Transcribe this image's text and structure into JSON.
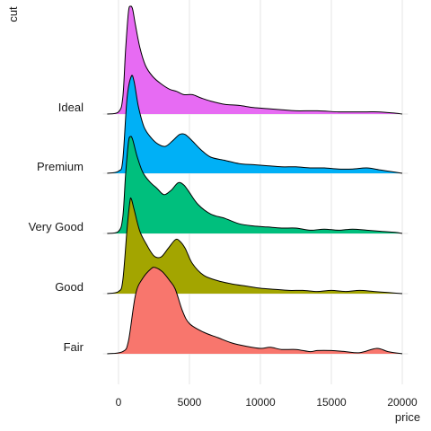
{
  "chart_data": {
    "type": "ridgeline",
    "xlabel": "price",
    "ylabel": "cut",
    "xlim": [
      -1100,
      20400
    ],
    "x_ticks": [
      0,
      5000,
      10000,
      15000,
      20000
    ],
    "grid": "vertical lines at x ticks",
    "categories": [
      "Fair",
      "Good",
      "Very Good",
      "Premium",
      "Ideal"
    ],
    "series": [
      {
        "name": "Fair",
        "color": "#F8766D",
        "density_points": [
          [
            -800,
            0
          ],
          [
            300,
            0.02
          ],
          [
            700,
            0.12
          ],
          [
            1200,
            0.55
          ],
          [
            1700,
            0.7
          ],
          [
            2300,
            0.79
          ],
          [
            2600,
            0.8
          ],
          [
            3100,
            0.76
          ],
          [
            3600,
            0.68
          ],
          [
            4000,
            0.6
          ],
          [
            4500,
            0.4
          ],
          [
            5000,
            0.28
          ],
          [
            6000,
            0.2
          ],
          [
            7000,
            0.15
          ],
          [
            8000,
            0.1
          ],
          [
            9000,
            0.07
          ],
          [
            10000,
            0.05
          ],
          [
            10700,
            0.06
          ],
          [
            11500,
            0.04
          ],
          [
            12500,
            0.04
          ],
          [
            13500,
            0.02
          ],
          [
            14000,
            0.03
          ],
          [
            15000,
            0.03
          ],
          [
            16000,
            0.02
          ],
          [
            17000,
            0.01
          ],
          [
            18200,
            0.05
          ],
          [
            19000,
            0.02
          ],
          [
            20000,
            0
          ]
        ]
      },
      {
        "name": "Good",
        "color": "#A3A500",
        "density_points": [
          [
            -800,
            0
          ],
          [
            0,
            0.02
          ],
          [
            300,
            0.12
          ],
          [
            600,
            0.6
          ],
          [
            800,
            0.85
          ],
          [
            900,
            0.88
          ],
          [
            1100,
            0.78
          ],
          [
            1500,
            0.58
          ],
          [
            2000,
            0.45
          ],
          [
            2500,
            0.35
          ],
          [
            3000,
            0.34
          ],
          [
            3500,
            0.42
          ],
          [
            4000,
            0.5
          ],
          [
            4300,
            0.49
          ],
          [
            4700,
            0.42
          ],
          [
            5200,
            0.28
          ],
          [
            6000,
            0.17
          ],
          [
            7000,
            0.12
          ],
          [
            8000,
            0.09
          ],
          [
            9000,
            0.07
          ],
          [
            10000,
            0.05
          ],
          [
            11000,
            0.04
          ],
          [
            12000,
            0.03
          ],
          [
            13000,
            0.03
          ],
          [
            14000,
            0.02
          ],
          [
            15000,
            0.03
          ],
          [
            16000,
            0.02
          ],
          [
            17000,
            0.03
          ],
          [
            18000,
            0.02
          ],
          [
            19000,
            0.01
          ],
          [
            20000,
            0
          ]
        ]
      },
      {
        "name": "Very Good",
        "color": "#00BF7D",
        "density_points": [
          [
            -800,
            0
          ],
          [
            0,
            0.02
          ],
          [
            300,
            0.15
          ],
          [
            500,
            0.55
          ],
          [
            700,
            0.85
          ],
          [
            850,
            0.9
          ],
          [
            1000,
            0.87
          ],
          [
            1300,
            0.72
          ],
          [
            1700,
            0.57
          ],
          [
            2200,
            0.48
          ],
          [
            2700,
            0.42
          ],
          [
            3200,
            0.36
          ],
          [
            3700,
            0.4
          ],
          [
            4200,
            0.47
          ],
          [
            4600,
            0.45
          ],
          [
            5000,
            0.38
          ],
          [
            5600,
            0.27
          ],
          [
            6500,
            0.18
          ],
          [
            7500,
            0.14
          ],
          [
            8500,
            0.09
          ],
          [
            9500,
            0.07
          ],
          [
            10500,
            0.06
          ],
          [
            11500,
            0.05
          ],
          [
            12500,
            0.05
          ],
          [
            13500,
            0.03
          ],
          [
            14500,
            0.04
          ],
          [
            15500,
            0.03
          ],
          [
            16500,
            0.04
          ],
          [
            17500,
            0.03
          ],
          [
            18500,
            0.02
          ],
          [
            19500,
            0.01
          ],
          [
            20000,
            0
          ]
        ]
      },
      {
        "name": "Premium",
        "color": "#00B0F6",
        "density_points": [
          [
            -800,
            0
          ],
          [
            0,
            0.02
          ],
          [
            300,
            0.12
          ],
          [
            600,
            0.7
          ],
          [
            900,
            0.9
          ],
          [
            1100,
            0.85
          ],
          [
            1400,
            0.62
          ],
          [
            1800,
            0.43
          ],
          [
            2300,
            0.33
          ],
          [
            2800,
            0.27
          ],
          [
            3300,
            0.25
          ],
          [
            3800,
            0.3
          ],
          [
            4300,
            0.36
          ],
          [
            4700,
            0.36
          ],
          [
            5200,
            0.3
          ],
          [
            5800,
            0.22
          ],
          [
            6500,
            0.15
          ],
          [
            7500,
            0.12
          ],
          [
            8500,
            0.09
          ],
          [
            9500,
            0.08
          ],
          [
            10500,
            0.07
          ],
          [
            11500,
            0.06
          ],
          [
            12500,
            0.06
          ],
          [
            13500,
            0.05
          ],
          [
            14500,
            0.05
          ],
          [
            15500,
            0.04
          ],
          [
            16500,
            0.04
          ],
          [
            17500,
            0.05
          ],
          [
            18500,
            0.03
          ],
          [
            19500,
            0.01
          ],
          [
            20000,
            0
          ]
        ]
      },
      {
        "name": "Ideal",
        "color": "#E76BF3",
        "density_points": [
          [
            -800,
            0
          ],
          [
            0,
            0.02
          ],
          [
            300,
            0.15
          ],
          [
            500,
            0.6
          ],
          [
            700,
            0.95
          ],
          [
            850,
            1.0
          ],
          [
            1000,
            0.97
          ],
          [
            1200,
            0.82
          ],
          [
            1500,
            0.62
          ],
          [
            1900,
            0.45
          ],
          [
            2400,
            0.35
          ],
          [
            3000,
            0.28
          ],
          [
            3600,
            0.23
          ],
          [
            4100,
            0.21
          ],
          [
            4600,
            0.18
          ],
          [
            5200,
            0.18
          ],
          [
            5800,
            0.15
          ],
          [
            6500,
            0.12
          ],
          [
            7500,
            0.09
          ],
          [
            8500,
            0.08
          ],
          [
            9500,
            0.06
          ],
          [
            10500,
            0.05
          ],
          [
            11500,
            0.04
          ],
          [
            12500,
            0.03
          ],
          [
            14000,
            0.03
          ],
          [
            15500,
            0.02
          ],
          [
            16500,
            0.02
          ],
          [
            17500,
            0.02
          ],
          [
            18300,
            0.02
          ],
          [
            19300,
            0.01
          ],
          [
            20000,
            0
          ]
        ]
      }
    ]
  }
}
